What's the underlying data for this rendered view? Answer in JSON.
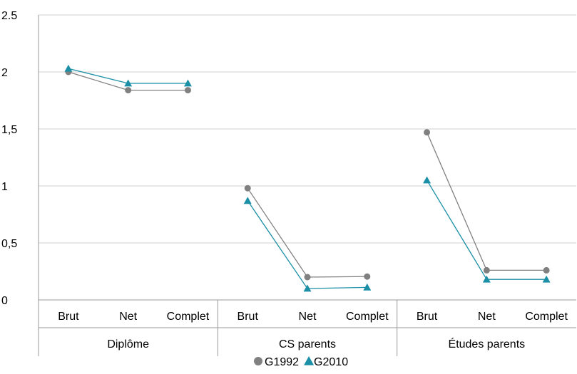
{
  "chart_data": {
    "type": "line",
    "title": "",
    "xlabel": "",
    "ylabel": "",
    "ylim": [
      0,
      2.5
    ],
    "y_ticks": [
      "0",
      "0,5",
      "1",
      "1,5",
      "2",
      "2.5"
    ],
    "y_tick_values": [
      0,
      0.5,
      1,
      1.5,
      2,
      2.5
    ],
    "grid": true,
    "legend_position": "bottom",
    "groups": [
      {
        "name": "Diplôme",
        "categories": [
          "Brut",
          "Net",
          "Complet"
        ]
      },
      {
        "name": "CS parents",
        "categories": [
          "Brut",
          "Net",
          "Complet"
        ]
      },
      {
        "name": "Études parents",
        "categories": [
          "Brut",
          "Net",
          "Complet"
        ]
      }
    ],
    "series": [
      {
        "name": "G1992",
        "color": "#808080",
        "marker": "circle",
        "values": [
          [
            2.0,
            1.84,
            1.84
          ],
          [
            0.98,
            0.2,
            0.205
          ],
          [
            1.47,
            0.26,
            0.26
          ]
        ]
      },
      {
        "name": "G2010",
        "color": "#1b8fa6",
        "marker": "triangle",
        "values": [
          [
            2.03,
            1.9,
            1.9
          ],
          [
            0.87,
            0.1,
            0.11
          ],
          [
            1.05,
            0.18,
            0.18
          ]
        ]
      }
    ]
  }
}
